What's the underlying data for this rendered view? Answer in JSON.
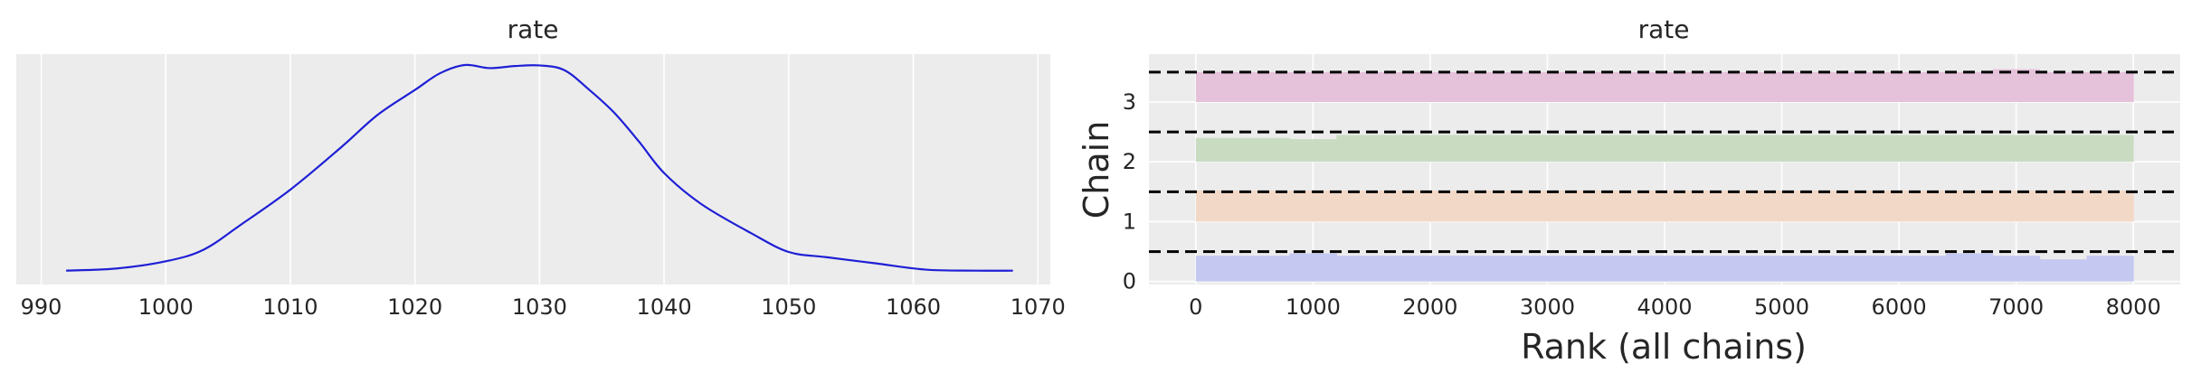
{
  "chart_data": [
    {
      "type": "line",
      "title": "rate",
      "xlabel": "",
      "ylabel": "",
      "xlim": [
        988,
        1071
      ],
      "xticks": [
        990,
        1000,
        1010,
        1020,
        1030,
        1040,
        1050,
        1060,
        1070
      ],
      "grid": true,
      "series": [
        {
          "color": "#1f1fd6",
          "x": [
            992,
            996,
            1000,
            1003,
            1006,
            1010,
            1014,
            1017,
            1020,
            1022,
            1024,
            1026,
            1028,
            1030,
            1032,
            1034,
            1036,
            1038,
            1040,
            1043,
            1047,
            1050,
            1053,
            1057,
            1061,
            1065,
            1068
          ],
          "y": [
            0.01,
            0.02,
            0.055,
            0.11,
            0.23,
            0.4,
            0.6,
            0.76,
            0.88,
            0.96,
            1.0,
            0.985,
            0.995,
            0.998,
            0.975,
            0.88,
            0.77,
            0.63,
            0.48,
            0.33,
            0.19,
            0.1,
            0.075,
            0.045,
            0.015,
            0.01,
            0.01
          ]
        }
      ]
    },
    {
      "type": "bar",
      "title": "rate",
      "xlabel": "Rank (all chains)",
      "ylabel": "Chain",
      "xlim": [
        -400,
        8400
      ],
      "ylim": [
        -0.05,
        3.8
      ],
      "xticks": [
        0,
        1000,
        2000,
        3000,
        4000,
        5000,
        6000,
        7000,
        8000
      ],
      "yticks": [
        0,
        1,
        2,
        3
      ],
      "reference_line": "dashed black at each chain + 0.5",
      "bin_width": 400,
      "series": [
        {
          "name": "0",
          "color": "#c5c8f0",
          "values": [
            0.43,
            0.43,
            0.47,
            0.43,
            0.43,
            0.43,
            0.43,
            0.43,
            0.43,
            0.43,
            0.43,
            0.43,
            0.43,
            0.43,
            0.43,
            0.43,
            0.47,
            0.43,
            0.37,
            0.43
          ]
        },
        {
          "name": "1",
          "color": "#f2d8c7",
          "values": [
            0.52,
            0.52,
            0.52,
            0.52,
            0.52,
            0.52,
            0.52,
            0.52,
            0.52,
            0.52,
            0.52,
            0.52,
            0.52,
            0.52,
            0.52,
            0.52,
            0.52,
            0.52,
            0.52,
            0.52
          ]
        },
        {
          "name": "2",
          "color": "#c9dcc2",
          "values": [
            0.4,
            0.4,
            0.38,
            0.45,
            0.45,
            0.45,
            0.45,
            0.45,
            0.45,
            0.45,
            0.45,
            0.45,
            0.45,
            0.45,
            0.45,
            0.45,
            0.45,
            0.45,
            0.45,
            0.45
          ]
        },
        {
          "name": "3",
          "color": "#e6c1da",
          "values": [
            0.5,
            0.5,
            0.5,
            0.5,
            0.5,
            0.5,
            0.5,
            0.5,
            0.5,
            0.5,
            0.5,
            0.5,
            0.5,
            0.5,
            0.5,
            0.5,
            0.5,
            0.55,
            0.5,
            0.5
          ]
        }
      ]
    }
  ]
}
